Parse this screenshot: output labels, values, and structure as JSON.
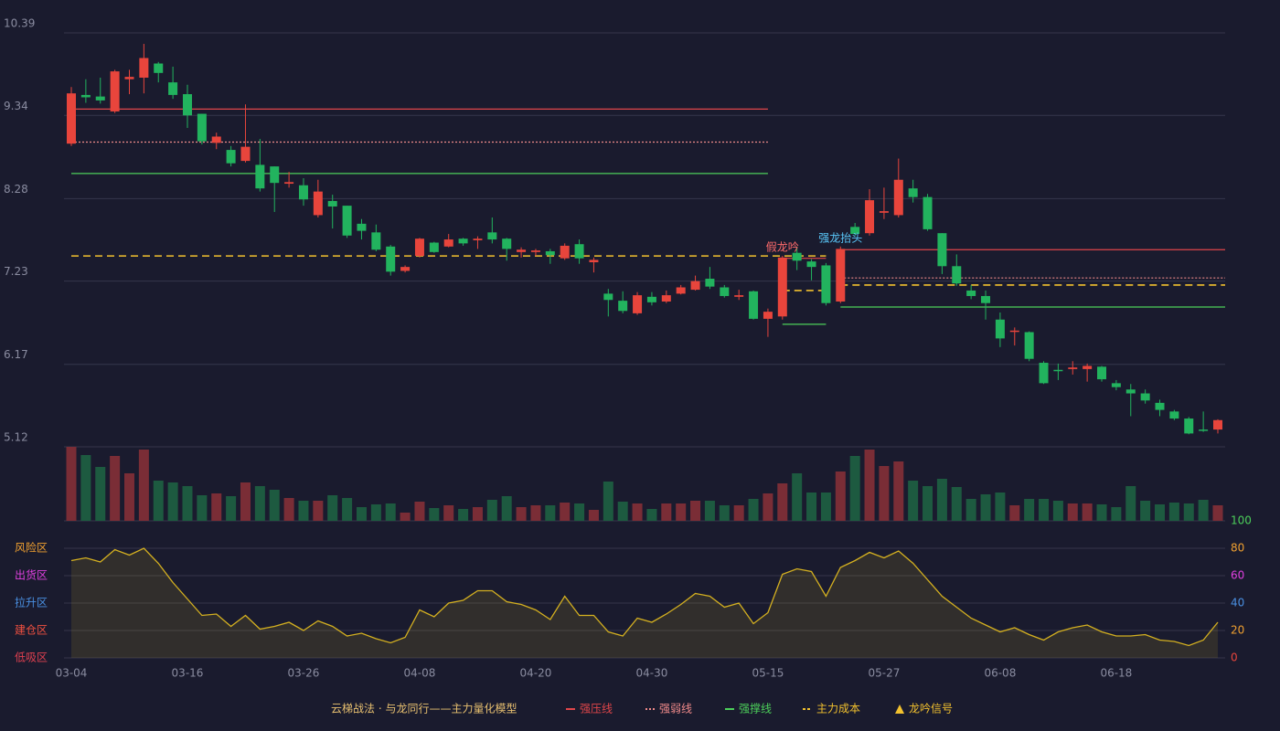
{
  "chart_data": {
    "type": "candlestick",
    "categories": [
      "03-04",
      null,
      null,
      null,
      null,
      null,
      null,
      null,
      "03-16",
      null,
      null,
      null,
      null,
      null,
      null,
      null,
      "03-26",
      null,
      null,
      null,
      null,
      null,
      null,
      null,
      "04-08",
      null,
      null,
      null,
      null,
      null,
      null,
      null,
      "04-20",
      null,
      null,
      null,
      null,
      null,
      null,
      null,
      "04-30",
      null,
      null,
      null,
      null,
      null,
      null,
      null,
      "05-15",
      null,
      null,
      null,
      null,
      null,
      null,
      null,
      "05-27",
      null,
      null,
      null,
      null,
      null,
      null,
      null,
      "06-08",
      null,
      null,
      null,
      null,
      null,
      null,
      null,
      "06-18",
      null,
      null,
      null,
      null,
      null,
      null,
      null
    ],
    "open": [
      8.98,
      9.6,
      9.58,
      9.39,
      9.8,
      9.82,
      10.0,
      9.76,
      9.61,
      9.36,
      8.99,
      8.9,
      8.76,
      8.71,
      8.69,
      8.47,
      8.45,
      8.07,
      8.25,
      8.19,
      7.96,
      7.85,
      7.67,
      7.36,
      7.55,
      7.72,
      7.67,
      7.77,
      7.75,
      7.85,
      7.77,
      7.6,
      7.6,
      7.61,
      7.52,
      7.7,
      7.47,
      7.07,
      6.98,
      6.82,
      7.03,
      6.97,
      7.07,
      7.12,
      7.26,
      7.15,
      7.03,
      7.1,
      6.75,
      6.78,
      7.59,
      7.48,
      7.43,
      6.97,
      7.92,
      7.84,
      8.1,
      8.07,
      8.41,
      8.3,
      7.84,
      7.42,
      7.11,
      7.04,
      6.74,
      6.59,
      6.58,
      6.19,
      6.1,
      6.11,
      6.11,
      6.14,
      5.93,
      5.85,
      5.8,
      5.68,
      5.57,
      5.48,
      5.34,
      5.34
    ],
    "close": [
      9.62,
      9.57,
      9.53,
      9.9,
      9.83,
      10.07,
      9.88,
      9.6,
      9.34,
      9.01,
      9.07,
      8.73,
      8.94,
      8.41,
      8.48,
      8.49,
      8.27,
      8.37,
      8.18,
      7.81,
      7.87,
      7.63,
      7.35,
      7.41,
      7.77,
      7.6,
      7.76,
      7.71,
      7.77,
      7.76,
      7.64,
      7.63,
      7.62,
      7.56,
      7.68,
      7.52,
      7.5,
      6.99,
      6.85,
      7.05,
      6.96,
      7.05,
      7.15,
      7.23,
      7.16,
      7.04,
      7.05,
      6.75,
      6.84,
      7.53,
      7.49,
      7.41,
      6.95,
      7.64,
      7.83,
      8.26,
      8.12,
      8.52,
      8.3,
      7.89,
      7.42,
      7.2,
      7.04,
      6.95,
      6.5,
      6.6,
      6.24,
      5.93,
      6.09,
      6.13,
      6.15,
      5.98,
      5.88,
      5.8,
      5.71,
      5.59,
      5.48,
      5.29,
      5.33,
      5.46
    ],
    "high": [
      9.7,
      9.8,
      9.82,
      9.92,
      9.92,
      10.25,
      10.02,
      9.96,
      9.73,
      9.36,
      9.12,
      8.95,
      9.48,
      9.04,
      8.69,
      8.62,
      8.54,
      8.52,
      8.33,
      8.19,
      8.02,
      7.95,
      7.69,
      7.43,
      7.78,
      7.73,
      7.83,
      7.78,
      7.8,
      8.04,
      7.78,
      7.66,
      7.64,
      7.64,
      7.71,
      7.76,
      7.53,
      7.13,
      7.1,
      7.09,
      7.09,
      7.11,
      7.18,
      7.3,
      7.41,
      7.18,
      7.12,
      7.11,
      6.88,
      7.55,
      7.67,
      7.51,
      7.46,
      7.67,
      7.97,
      8.4,
      8.42,
      8.79,
      8.52,
      8.34,
      7.84,
      7.57,
      7.18,
      7.11,
      6.83,
      6.64,
      6.59,
      6.21,
      6.18,
      6.21,
      6.18,
      6.15,
      5.97,
      5.92,
      5.85,
      5.72,
      5.59,
      5.5,
      5.57,
      5.47
    ],
    "low": [
      8.95,
      9.5,
      9.49,
      9.37,
      9.61,
      9.62,
      9.76,
      9.55,
      9.18,
      8.97,
      8.91,
      8.69,
      8.74,
      8.37,
      8.11,
      8.42,
      8.19,
      8.04,
      7.9,
      7.78,
      7.76,
      7.61,
      7.3,
      7.34,
      7.53,
      7.59,
      7.66,
      7.68,
      7.64,
      7.71,
      7.49,
      7.53,
      7.55,
      7.45,
      7.5,
      7.45,
      7.34,
      6.78,
      6.82,
      6.8,
      6.92,
      6.95,
      7.06,
      7.11,
      7.13,
      7.02,
      6.99,
      6.74,
      6.52,
      6.74,
      7.37,
      7.24,
      6.92,
      6.95,
      7.81,
      7.81,
      8.02,
      8.04,
      8.23,
      7.87,
      7.32,
      7.17,
      7.0,
      6.74,
      6.39,
      6.41,
      6.21,
      5.92,
      5.97,
      6.04,
      5.95,
      5.95,
      5.84,
      5.51,
      5.67,
      5.51,
      5.46,
      5.28,
      5.31,
      5.29
    ],
    "volume": [
      81,
      72,
      59,
      71,
      52,
      78,
      44,
      42,
      38,
      28,
      30,
      27,
      42,
      38,
      34,
      25,
      22,
      22,
      28,
      25,
      15,
      18,
      19,
      9,
      21,
      14,
      17,
      13,
      15,
      23,
      27,
      15,
      17,
      17,
      20,
      19,
      12,
      43,
      21,
      19,
      13,
      19,
      19,
      22,
      22,
      17,
      17,
      24,
      30,
      41,
      52,
      31,
      31,
      54,
      71,
      78,
      60,
      65,
      44,
      38,
      46,
      37,
      24,
      29,
      31,
      17,
      24,
      24,
      22,
      19,
      19,
      18,
      15,
      38,
      22,
      18,
      20,
      19,
      23,
      17
    ],
    "up_color": "#e8453c",
    "down_color": "#22b35e",
    "volume_up_color": "#7a2d36",
    "volume_down_color": "#1d5a40",
    "ylim": [
      5.12,
      10.39
    ],
    "yticks": [
      10.39,
      9.34,
      8.28,
      7.23,
      6.17,
      5.12
    ],
    "grid": true,
    "levels": [
      {
        "name": "强压线",
        "color": "#e0464a",
        "style": "solid",
        "segments": [
          {
            "from": 0,
            "to": 48,
            "value": 9.42
          },
          {
            "from": 49,
            "to": 52,
            "value": 7.52
          },
          {
            "from": 53,
            "to": 79,
            "value": 7.63
          }
        ]
      },
      {
        "name": "强弱线",
        "color": "#f08a8a",
        "style": "dotted",
        "segments": [
          {
            "from": 0,
            "to": 48,
            "value": 9.0
          },
          {
            "from": 53,
            "to": 79,
            "value": 7.27
          }
        ]
      },
      {
        "name": "强撑线",
        "color": "#4ccf5a",
        "style": "solid",
        "segments": [
          {
            "from": 0,
            "to": 48,
            "value": 8.6
          },
          {
            "from": 49,
            "to": 52,
            "value": 6.68
          },
          {
            "from": 53,
            "to": 79,
            "value": 6.9
          }
        ]
      },
      {
        "name": "主力成本",
        "color": "#f2c12e",
        "style": "dashed",
        "segments": [
          {
            "from": 0,
            "to": 52,
            "value": 7.55
          },
          {
            "from": 49,
            "to": 52,
            "value": 7.11
          },
          {
            "from": 53,
            "to": 79,
            "value": 7.18
          }
        ]
      }
    ],
    "signals": {
      "name": "龙吟信号",
      "color": "#f2c12e",
      "points": [
        {
          "index": 49,
          "label": "假龙吟",
          "color": "#ff6b6b"
        },
        {
          "index": 53,
          "label": "强龙抬头",
          "color": "#5ac8fa"
        }
      ]
    },
    "indicator": {
      "values": [
        71,
        73,
        70,
        79,
        75,
        80,
        69,
        55,
        43,
        31,
        32,
        23,
        31,
        21,
        23,
        26,
        20,
        27,
        23,
        16,
        18,
        14,
        11,
        15,
        35,
        30,
        40,
        42,
        49,
        49,
        41,
        39,
        35,
        28,
        45,
        31,
        31,
        19,
        16,
        29,
        26,
        32,
        39,
        47,
        45,
        37,
        40,
        25,
        33,
        61,
        65,
        63,
        45,
        66,
        71,
        77,
        73,
        78,
        69,
        57,
        45,
        37,
        29,
        24,
        19,
        22,
        17,
        13,
        19,
        22,
        24,
        19,
        16,
        16,
        17,
        13,
        12,
        9,
        13,
        26
      ],
      "color": "#d4b020",
      "ylim": [
        0,
        100
      ],
      "yticks": [
        0,
        20,
        40,
        60,
        80,
        100
      ],
      "tick_colors": [
        "#e8453c",
        "#f0a030",
        "#4a90e2",
        "#e040e0",
        "#f0a030",
        "#4ccf5a"
      ],
      "zones": [
        {
          "label": "风险区",
          "value": 80,
          "color": "#f0a030"
        },
        {
          "label": "出货区",
          "value": 60,
          "color": "#e040e0"
        },
        {
          "label": "拉升区",
          "value": 40,
          "color": "#4a90e2"
        },
        {
          "label": "建仓区",
          "value": 20,
          "color": "#f05040"
        },
        {
          "label": "低吸区",
          "value": 0,
          "color": "#e04050"
        }
      ]
    },
    "legend_title": "云梯战法 · 与龙同行——主力量化模型"
  }
}
